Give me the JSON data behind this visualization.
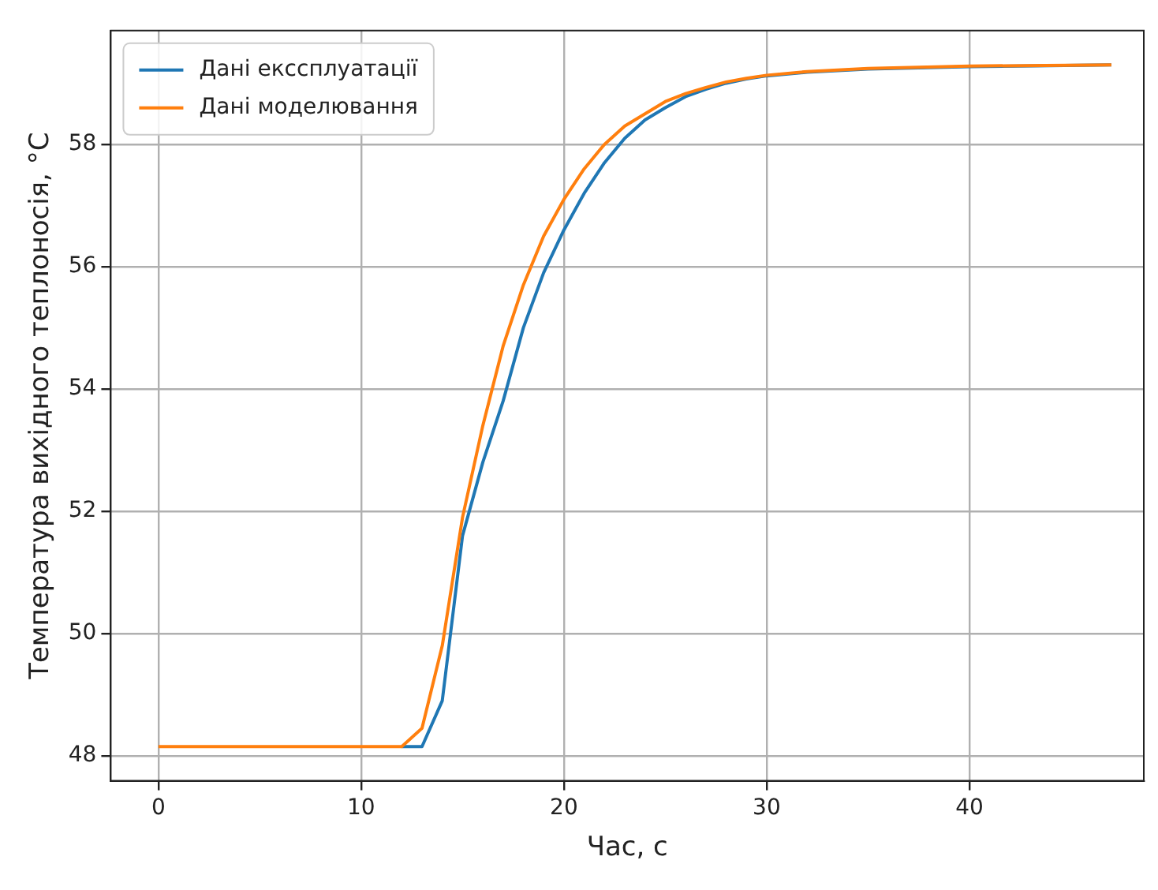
{
  "chart_data": {
    "type": "line",
    "xlabel": "Час, с",
    "ylabel": "Температура вихідного теплоносія, °C",
    "series": [
      {
        "name": "Дані ексcплуатації",
        "color": "#1f77b4",
        "x": [
          12,
          13,
          14,
          15,
          16,
          17,
          18,
          19,
          20,
          21,
          22,
          23,
          24,
          25,
          26,
          27,
          28,
          29,
          30,
          32,
          35,
          40,
          47
        ],
        "values": [
          48.15,
          48.15,
          48.9,
          51.6,
          52.8,
          53.8,
          55.0,
          55.9,
          56.6,
          57.2,
          57.7,
          58.1,
          58.4,
          58.6,
          58.78,
          58.9,
          59.0,
          59.07,
          59.12,
          59.18,
          59.23,
          59.27,
          59.3
        ]
      },
      {
        "name": "Дані моделювання",
        "color": "#ff7f0e",
        "x": [
          0,
          5,
          10,
          12,
          13,
          14,
          15,
          16,
          17,
          18,
          19,
          20,
          21,
          22,
          23,
          24,
          25,
          26,
          27,
          28,
          29,
          30,
          32,
          35,
          40,
          47
        ],
        "values": [
          48.15,
          48.15,
          48.15,
          48.15,
          48.45,
          49.8,
          51.9,
          53.4,
          54.7,
          55.7,
          56.5,
          57.1,
          57.6,
          58.0,
          58.3,
          58.5,
          58.7,
          58.83,
          58.93,
          59.02,
          59.08,
          59.13,
          59.19,
          59.24,
          59.28,
          59.3
        ]
      }
    ],
    "xlim": [
      -2.35,
      48.6
    ],
    "xticks": [
      0,
      10,
      20,
      30,
      40
    ],
    "ylim": [
      47.59,
      59.86
    ],
    "yticks": [
      48,
      50,
      52,
      54,
      56,
      58
    ],
    "grid": true,
    "legend": "top left",
    "line_style": "solid",
    "marker": "none"
  }
}
